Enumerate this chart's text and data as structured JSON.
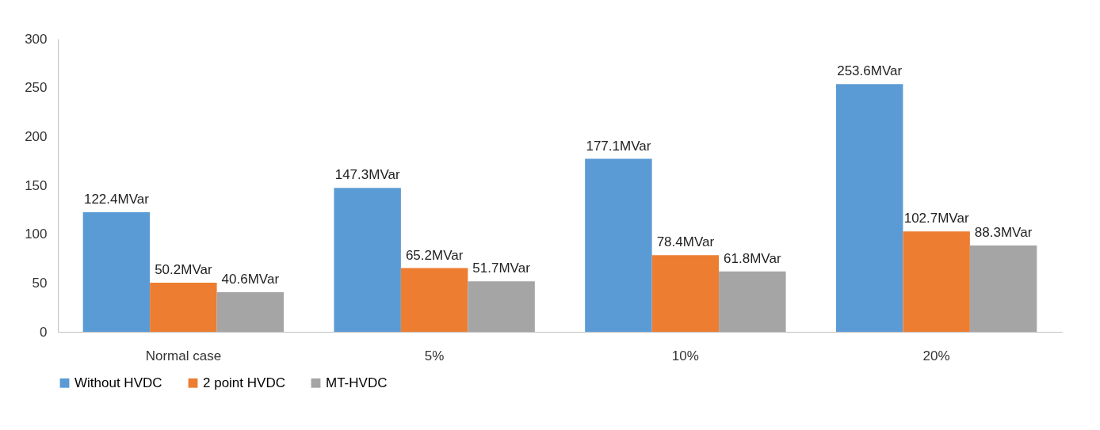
{
  "chart_data": {
    "type": "bar",
    "categories": [
      "Normal case",
      "5%",
      "10%",
      "20%"
    ],
    "series": [
      {
        "name": "Without HVDC",
        "color": "#5b9bd5",
        "values": [
          122.4,
          147.3,
          177.1,
          253.6
        ],
        "value_labels": [
          "122.4MVar",
          "147.3MVar",
          "177.1MVar",
          "253.6MVar"
        ]
      },
      {
        "name": "2 point HVDC",
        "color": "#ed7d31",
        "values": [
          50.2,
          65.2,
          78.4,
          102.7
        ],
        "value_labels": [
          "50.2MVar",
          "65.2MVar",
          "78.4MVar",
          "102.7MVar"
        ]
      },
      {
        "name": "MT-HVDC",
        "color": "#a5a5a5",
        "values": [
          40.6,
          51.7,
          61.8,
          88.3
        ],
        "value_labels": [
          "40.6MVar",
          "51.7MVar",
          "61.8MVar",
          "88.3MVar"
        ]
      }
    ],
    "ylim": [
      0,
      300
    ],
    "yticks": [
      0,
      50,
      100,
      150,
      200,
      250,
      300
    ],
    "grid": false,
    "legend": "bottom"
  }
}
